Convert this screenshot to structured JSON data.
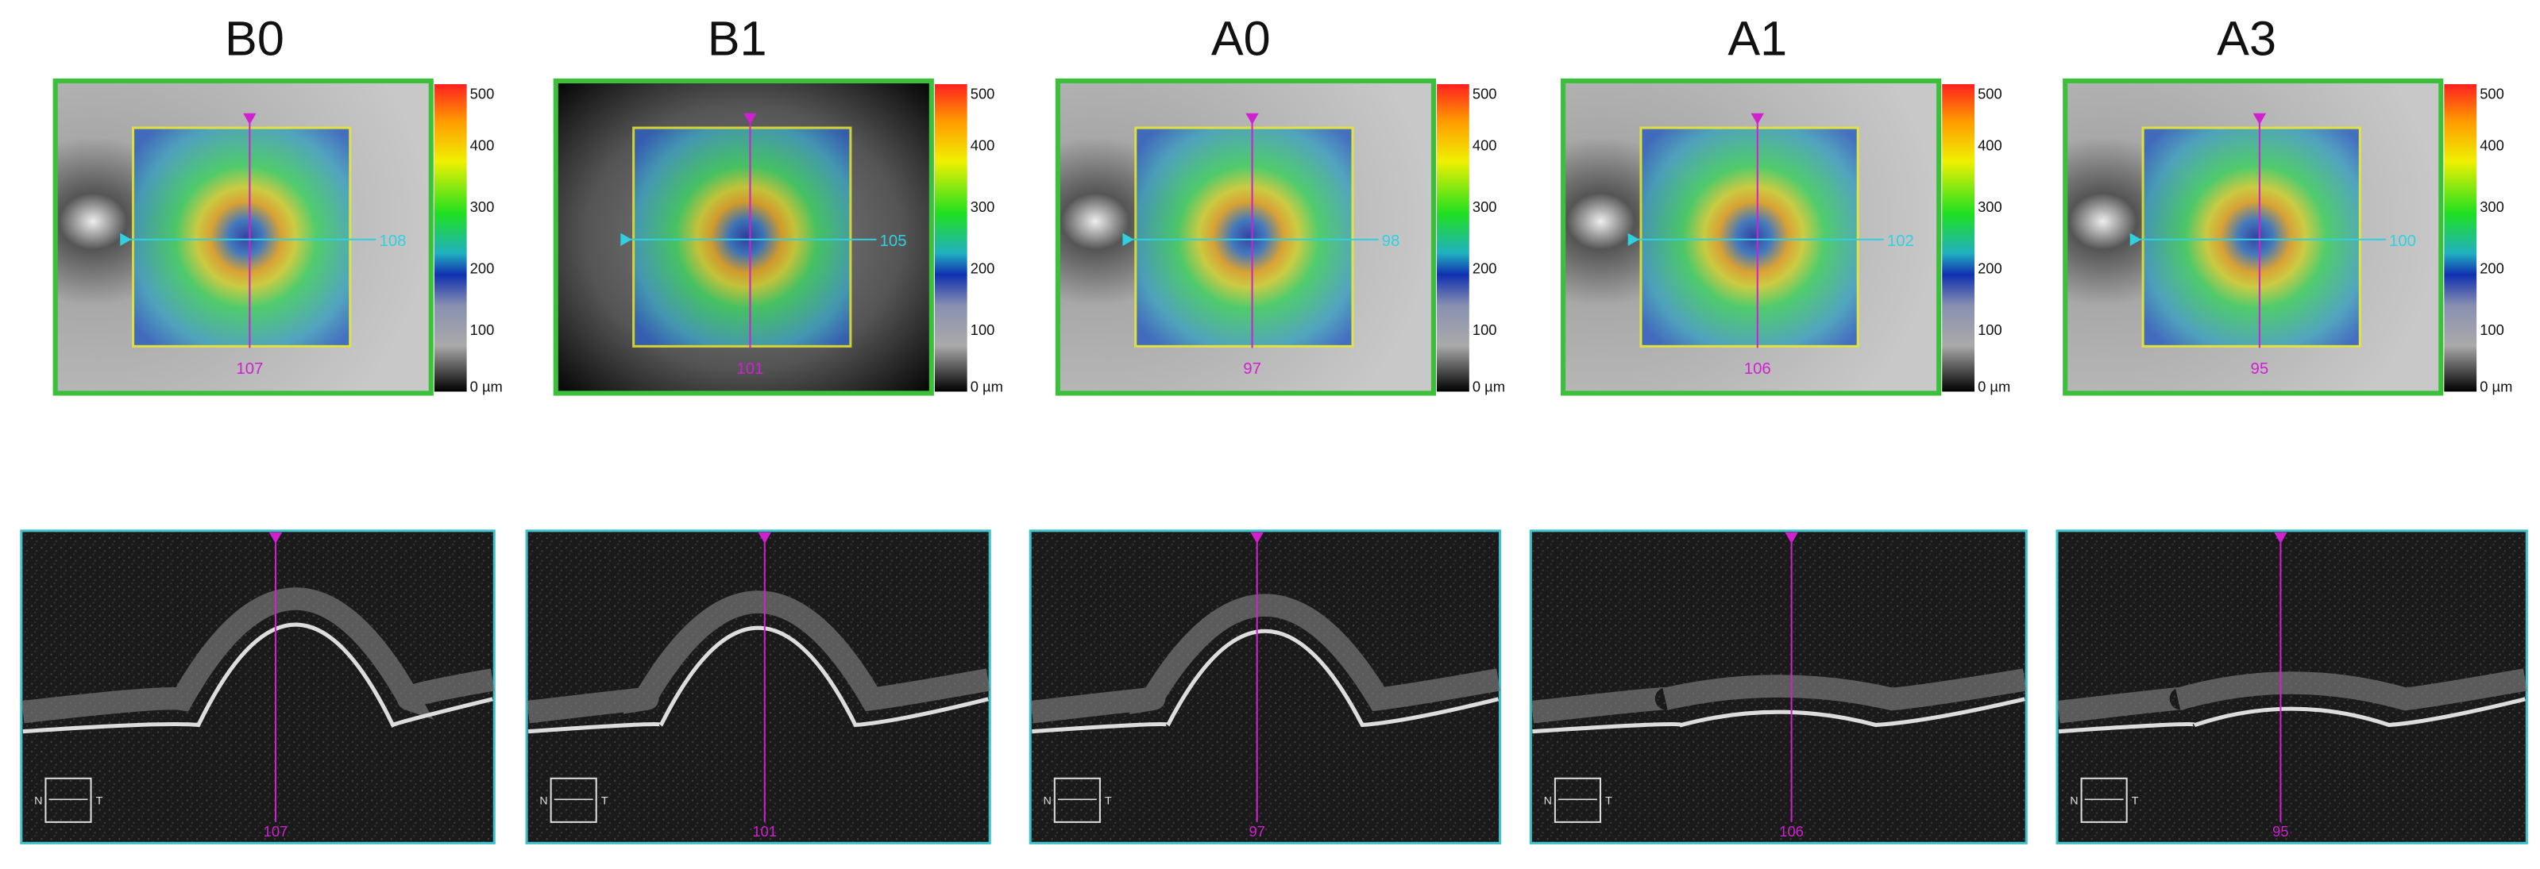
{
  "panels": [
    {
      "label": "B0",
      "map": {
        "vertical_scan": "107",
        "horizontal_scan": "108"
      },
      "bscan": {
        "scan": "107",
        "orientation": {
          "left": "N",
          "right": "T"
        }
      }
    },
    {
      "label": "B1",
      "map": {
        "vertical_scan": "101",
        "horizontal_scan": "105"
      },
      "bscan": {
        "scan": "101",
        "orientation": {
          "left": "N",
          "right": "T"
        }
      }
    },
    {
      "label": "A0",
      "map": {
        "vertical_scan": "97",
        "horizontal_scan": "98"
      },
      "bscan": {
        "scan": "97",
        "orientation": {
          "left": "N",
          "right": "T"
        }
      }
    },
    {
      "label": "A1",
      "map": {
        "vertical_scan": "106",
        "horizontal_scan": "102"
      },
      "bscan": {
        "scan": "106",
        "orientation": {
          "left": "N",
          "right": "T"
        }
      }
    },
    {
      "label": "A3",
      "map": {
        "vertical_scan": "95",
        "horizontal_scan": "100"
      },
      "bscan": {
        "scan": "95",
        "orientation": {
          "left": "N",
          "right": "T"
        }
      }
    }
  ],
  "colorbar": {
    "ticks": [
      "500",
      "400",
      "300",
      "200",
      "100",
      "0 µm"
    ]
  }
}
